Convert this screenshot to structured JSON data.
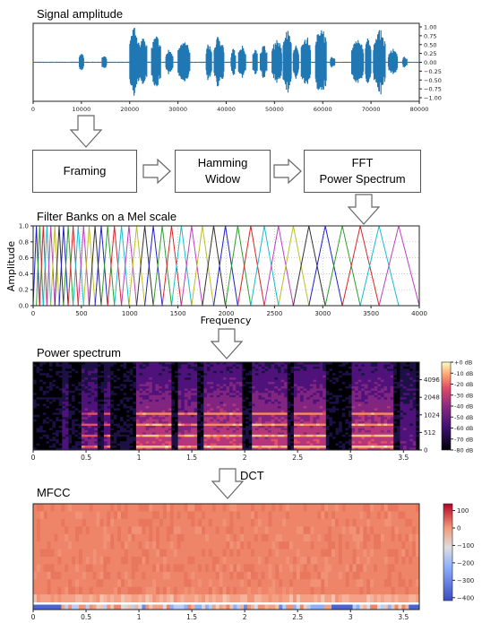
{
  "sections": {
    "signal": "Signal amplitude",
    "filterbank": "Filter Banks on a Mel scale",
    "power": "Power spectrum",
    "mfcc": "MFCC"
  },
  "steps": {
    "framing": "Framing",
    "hamming_line1": "Hamming",
    "hamming_line2": "Widow",
    "fft_line1": "FFT",
    "fft_line2": "Power Spectrum",
    "dct": "DCT"
  },
  "chart_data": [
    {
      "type": "line",
      "title": "Signal amplitude",
      "xlim": [
        0,
        80000
      ],
      "ylim": [
        -1.0,
        1.0
      ],
      "x_ticks": [
        0,
        10000,
        20000,
        30000,
        40000,
        50000,
        60000,
        70000,
        80000
      ],
      "y_ticks": [
        "1.00",
        "0.75",
        "0.50",
        "0.25",
        "0.00",
        "−0.25",
        "−0.50",
        "−0.75",
        "−1.00"
      ],
      "y_axis_side": "right",
      "color": "#1f77b4"
    },
    {
      "type": "line",
      "title": "Filter Banks on a Mel scale",
      "xlabel": "Frequency",
      "ylabel": "Amplitude",
      "xlim": [
        0,
        4000
      ],
      "ylim": [
        0.0,
        1.0
      ],
      "x_ticks": [
        0,
        500,
        1000,
        1500,
        2000,
        2500,
        3000,
        3500,
        4000
      ],
      "y_ticks": [
        "0.0",
        "0.2",
        "0.4",
        "0.6",
        "0.8",
        "1.0"
      ],
      "grid": true,
      "filter_count": 40,
      "colors": [
        "#1f1fcf",
        "#2ca02c",
        "#d62728",
        "#17becf",
        "#bf3fbf",
        "#bcbd22",
        "#333333"
      ]
    },
    {
      "type": "heatmap",
      "title": "Power spectrum",
      "xlim": [
        0,
        3.65
      ],
      "x_ticks": [
        "0",
        "0.5",
        "1",
        "1.5",
        "2",
        "2.5",
        "3",
        "3.5"
      ],
      "y_ticks": [
        "4096",
        "2048",
        "1024",
        "512",
        "0"
      ],
      "y_axis_side": "right",
      "colorbar": [
        "+0 dB",
        "-10 dB",
        "-20 dB",
        "-30 dB",
        "-40 dB",
        "-50 dB",
        "-60 dB",
        "-70 dB",
        "-80 dB"
      ]
    },
    {
      "type": "heatmap",
      "title": "MFCC",
      "xlim": [
        0,
        3.65
      ],
      "x_ticks": [
        "0",
        "0.5",
        "1",
        "1.5",
        "2",
        "2.5",
        "3",
        "3.5"
      ],
      "colorbar": [
        "100",
        "0",
        "−100",
        "−200",
        "−300",
        "−400"
      ]
    }
  ]
}
